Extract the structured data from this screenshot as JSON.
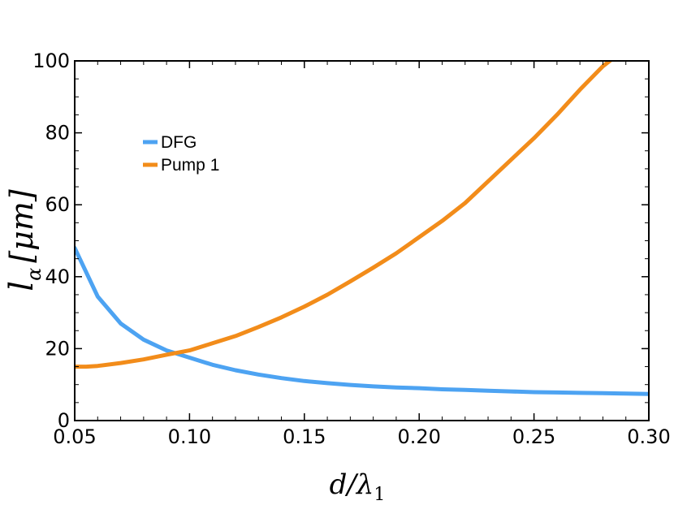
{
  "chart_data": {
    "type": "line",
    "title": "",
    "xlabel": "d/λ₁",
    "ylabel": "lα [μm]",
    "ylabel_main": "l",
    "ylabel_sub": "α",
    "ylabel_unit": "[μm]",
    "xlabel_main": "d/λ",
    "xlabel_sub": "1",
    "xlim": [
      0.05,
      0.3
    ],
    "ylim": [
      0,
      100
    ],
    "xticks": [
      "0.05",
      "0.10",
      "0.15",
      "0.20",
      "0.25",
      "0.30"
    ],
    "yticks": [
      "0",
      "20",
      "40",
      "60",
      "80",
      "100"
    ],
    "legend_position": "upper-left",
    "series": [
      {
        "name": "DFG",
        "color": "#4DA3F2",
        "x": [
          0.05,
          0.06,
          0.07,
          0.08,
          0.09,
          0.1,
          0.11,
          0.12,
          0.13,
          0.14,
          0.15,
          0.16,
          0.17,
          0.18,
          0.19,
          0.2,
          0.21,
          0.22,
          0.23,
          0.24,
          0.25,
          0.26,
          0.27,
          0.28,
          0.29,
          0.3
        ],
        "y": [
          48,
          34.5,
          27,
          22.5,
          19.5,
          17.5,
          15.5,
          14,
          12.8,
          11.8,
          11,
          10.4,
          9.9,
          9.5,
          9.2,
          9,
          8.7,
          8.5,
          8.3,
          8.1,
          7.9,
          7.8,
          7.7,
          7.6,
          7.5,
          7.4
        ]
      },
      {
        "name": "Pump 1",
        "color": "#F28C1A",
        "x": [
          0.05,
          0.055,
          0.06,
          0.07,
          0.08,
          0.09,
          0.1,
          0.11,
          0.12,
          0.13,
          0.14,
          0.15,
          0.16,
          0.17,
          0.18,
          0.19,
          0.2,
          0.21,
          0.22,
          0.23,
          0.24,
          0.25,
          0.26,
          0.27,
          0.28,
          0.285
        ],
        "y": [
          15,
          15,
          15.2,
          16,
          17,
          18.3,
          19.5,
          21.5,
          23.5,
          26,
          28.7,
          31.7,
          35,
          38.7,
          42.5,
          46.5,
          51,
          55.5,
          60.5,
          66.5,
          72.5,
          78.5,
          85,
          92,
          98.5,
          101
        ]
      }
    ]
  }
}
